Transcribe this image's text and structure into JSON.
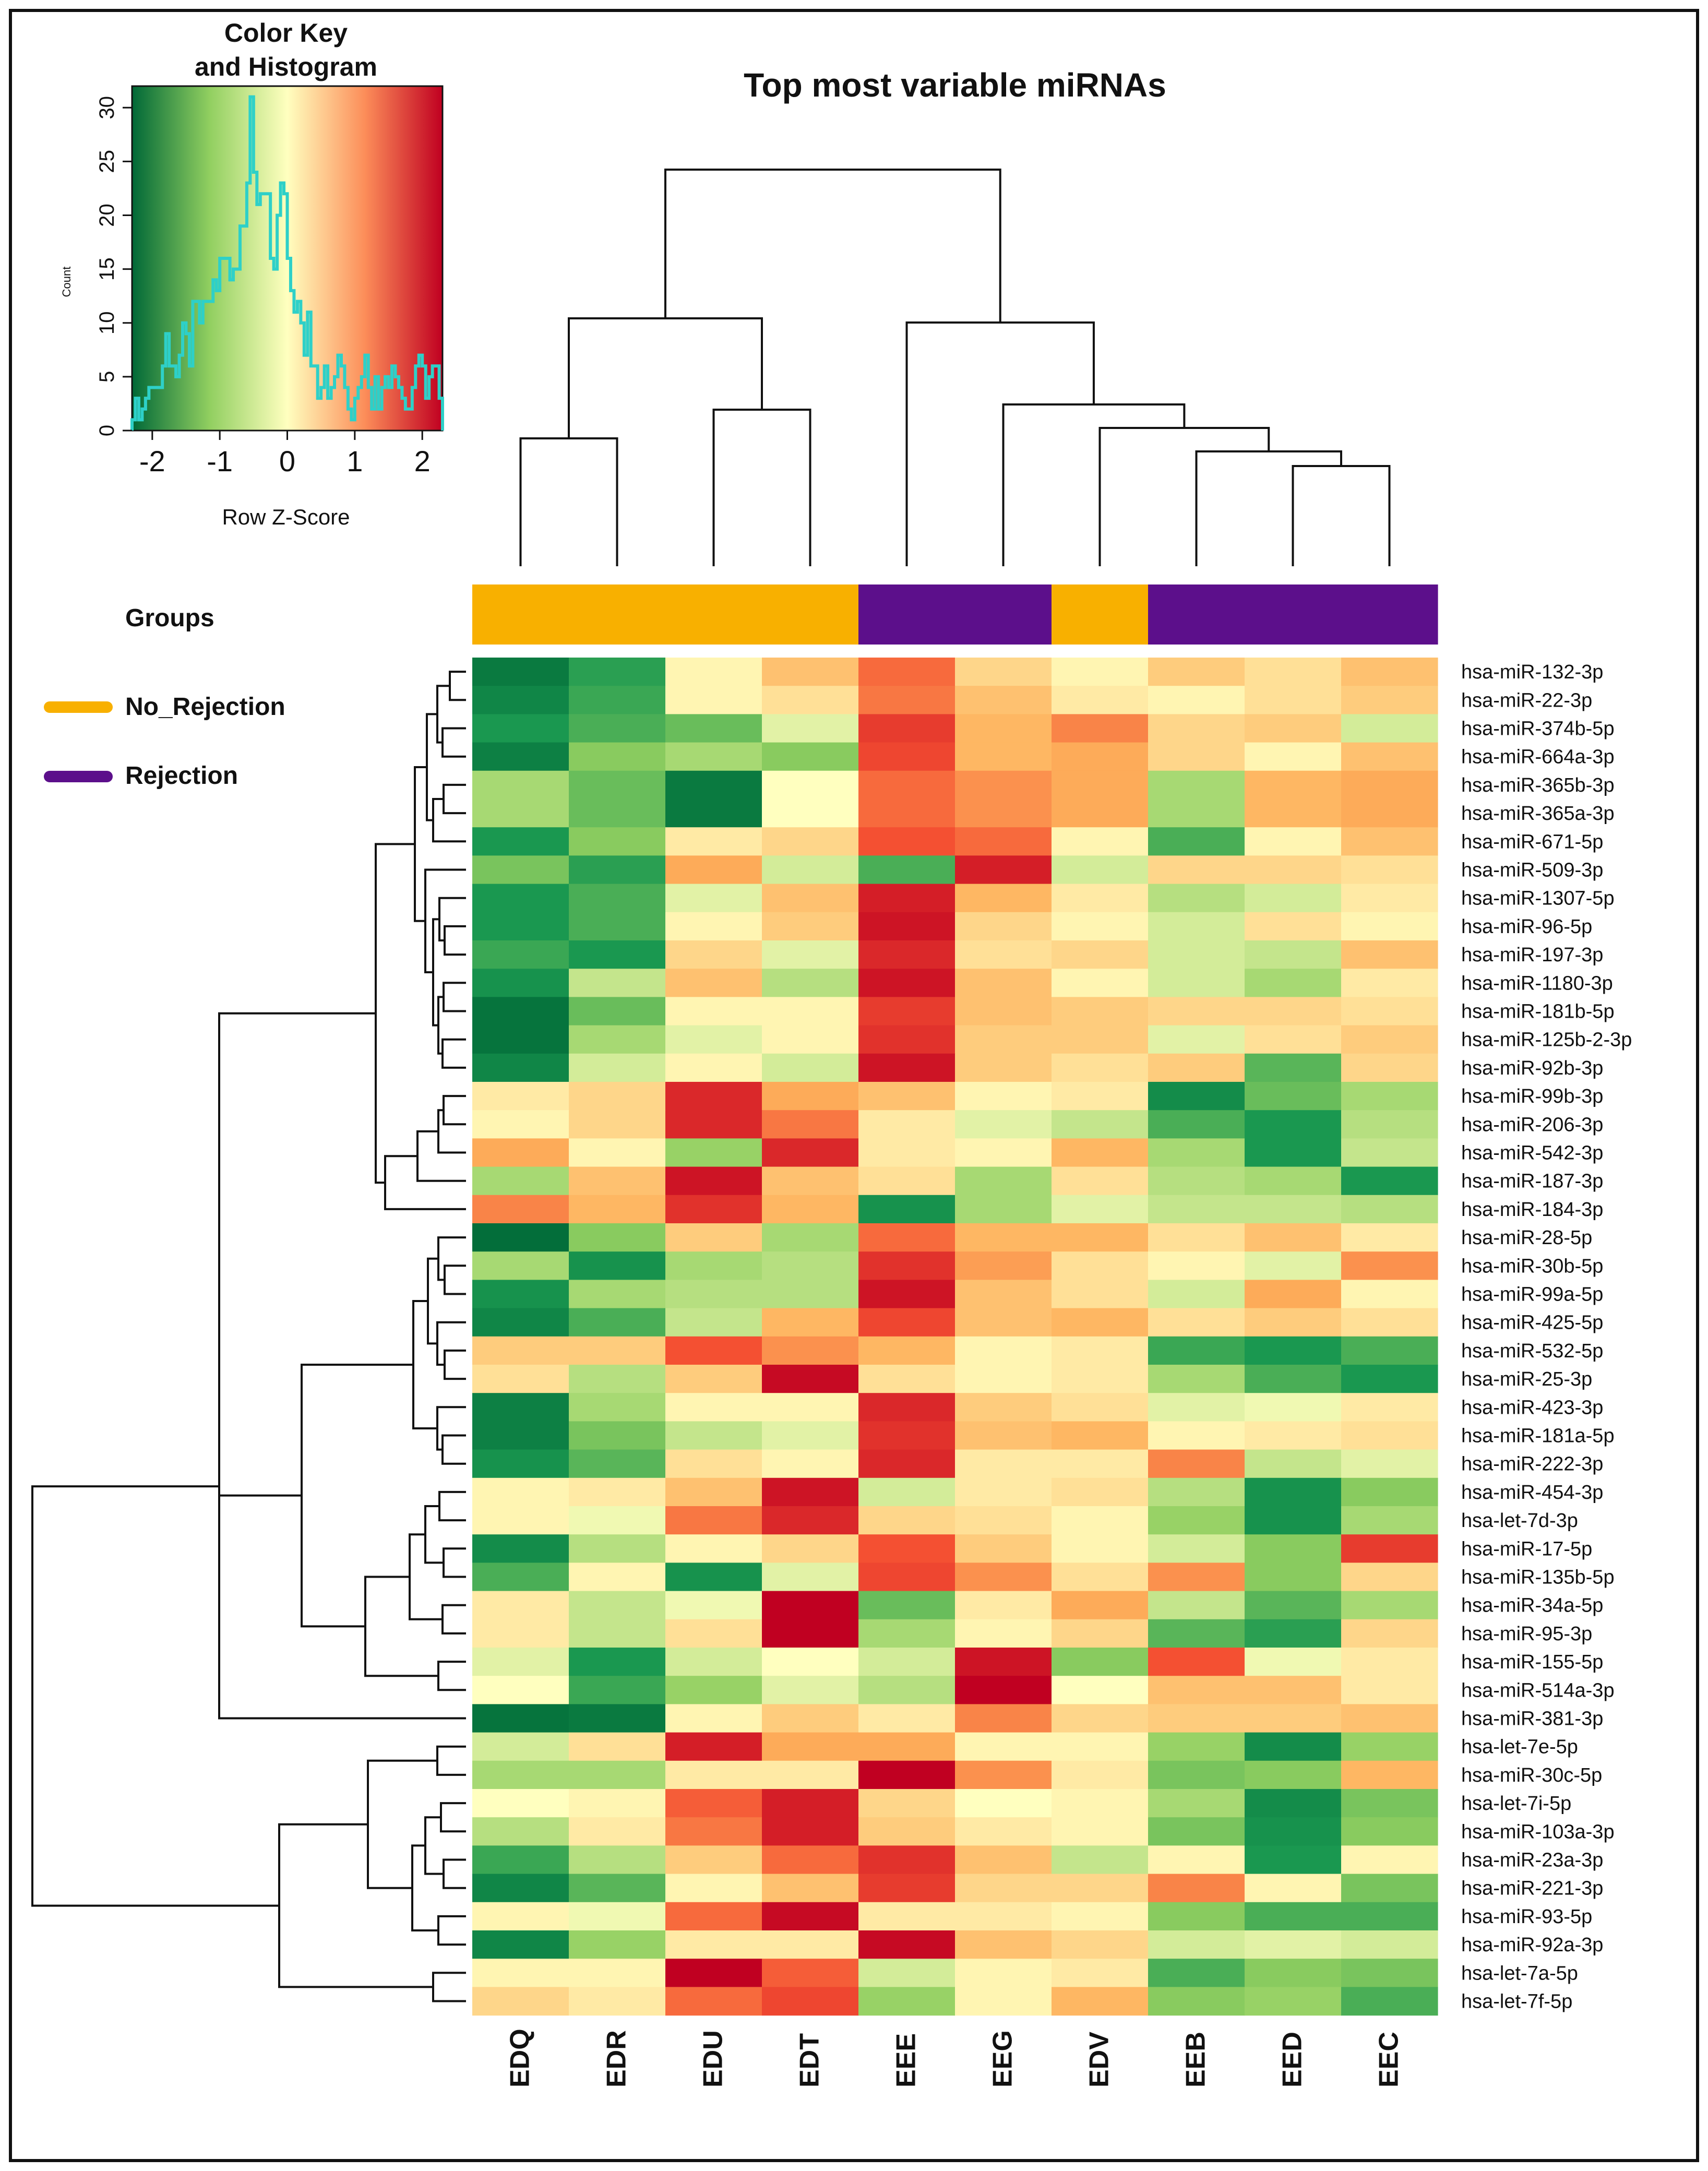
{
  "chart_data": {
    "type": "heatmap",
    "title": "Top most variable miRNAs",
    "columns": [
      "EDQ",
      "EDR",
      "EDU",
      "EDT",
      "EEE",
      "EEG",
      "EDV",
      "EEB",
      "EED",
      "EEC"
    ],
    "column_groups": [
      "No_Rejection",
      "No_Rejection",
      "No_Rejection",
      "No_Rejection",
      "Rejection",
      "Rejection",
      "No_Rejection",
      "Rejection",
      "Rejection",
      "Rejection"
    ],
    "rows": [
      "hsa-miR-132-3p",
      "hsa-miR-22-3p",
      "hsa-miR-374b-5p",
      "hsa-miR-664a-3p",
      "hsa-miR-365b-3p",
      "hsa-miR-365a-3p",
      "hsa-miR-671-5p",
      "hsa-miR-509-3p",
      "hsa-miR-1307-5p",
      "hsa-miR-96-5p",
      "hsa-miR-197-3p",
      "hsa-miR-1180-3p",
      "hsa-miR-181b-5p",
      "hsa-miR-125b-2-3p",
      "hsa-miR-92b-3p",
      "hsa-miR-99b-3p",
      "hsa-miR-206-3p",
      "hsa-miR-542-3p",
      "hsa-miR-187-3p",
      "hsa-miR-184-3p",
      "hsa-miR-28-5p",
      "hsa-miR-30b-5p",
      "hsa-miR-99a-5p",
      "hsa-miR-425-5p",
      "hsa-miR-532-5p",
      "hsa-miR-25-3p",
      "hsa-miR-423-3p",
      "hsa-miR-181a-5p",
      "hsa-miR-222-3p",
      "hsa-miR-454-3p",
      "hsa-let-7d-3p",
      "hsa-miR-17-5p",
      "hsa-miR-135b-5p",
      "hsa-miR-34a-5p",
      "hsa-miR-95-3p",
      "hsa-miR-155-5p",
      "hsa-miR-514a-3p",
      "hsa-miR-381-3p",
      "hsa-let-7e-5p",
      "hsa-miR-30c-5p",
      "hsa-let-7i-5p",
      "hsa-miR-103a-3p",
      "hsa-miR-23a-3p",
      "hsa-miR-221-3p",
      "hsa-miR-93-5p",
      "hsa-miR-92a-3p",
      "hsa-let-7a-5p",
      "hsa-let-7f-5p"
    ],
    "values": [
      [
        -2.0,
        -1.4,
        0.1,
        0.6,
        1.3,
        0.4,
        0.1,
        0.5,
        0.3,
        0.6
      ],
      [
        -1.8,
        -1.3,
        0.1,
        0.3,
        1.2,
        0.6,
        0.2,
        0.1,
        0.3,
        0.5
      ],
      [
        -1.5,
        -1.2,
        -1.0,
        -0.2,
        1.7,
        0.7,
        1.1,
        0.4,
        0.5,
        -0.3
      ],
      [
        -1.9,
        -0.8,
        -0.6,
        -0.8,
        1.6,
        0.7,
        0.8,
        0.4,
        0.1,
        0.6
      ],
      [
        -0.6,
        -1.0,
        -2.0,
        0.0,
        1.3,
        1.0,
        0.8,
        -0.6,
        0.7,
        0.8
      ],
      [
        -0.6,
        -1.0,
        -2.0,
        0.0,
        1.3,
        1.0,
        0.8,
        -0.6,
        0.7,
        0.8
      ],
      [
        -1.5,
        -0.8,
        0.2,
        0.4,
        1.5,
        1.3,
        0.1,
        -1.2,
        0.1,
        0.6
      ],
      [
        -0.9,
        -1.4,
        0.8,
        -0.3,
        -1.2,
        2.0,
        -0.3,
        0.4,
        0.4,
        0.3
      ],
      [
        -1.5,
        -1.2,
        -0.2,
        0.6,
        2.0,
        0.7,
        0.2,
        -0.5,
        -0.3,
        0.2
      ],
      [
        -1.5,
        -1.2,
        0.1,
        0.5,
        2.1,
        0.4,
        0.1,
        -0.3,
        0.3,
        0.1
      ],
      [
        -1.3,
        -1.5,
        0.4,
        -0.2,
        1.9,
        0.3,
        0.4,
        -0.3,
        -0.4,
        0.6
      ],
      [
        -1.6,
        -0.4,
        0.6,
        -0.5,
        2.1,
        0.6,
        0.1,
        -0.3,
        -0.6,
        0.2
      ],
      [
        -2.1,
        -1.0,
        0.1,
        0.1,
        1.7,
        0.6,
        0.5,
        0.4,
        0.4,
        0.3
      ],
      [
        -2.1,
        -0.6,
        -0.2,
        0.1,
        1.8,
        0.5,
        0.5,
        -0.2,
        0.3,
        0.5
      ],
      [
        -1.8,
        -0.3,
        0.1,
        -0.3,
        2.1,
        0.5,
        0.3,
        0.5,
        -1.1,
        0.4
      ],
      [
        0.2,
        0.4,
        1.9,
        0.8,
        0.6,
        0.1,
        0.2,
        -1.7,
        -1.0,
        -0.6
      ],
      [
        0.1,
        0.4,
        1.9,
        1.2,
        0.2,
        -0.2,
        -0.4,
        -1.2,
        -1.5,
        -0.5
      ],
      [
        0.8,
        0.1,
        -0.7,
        1.9,
        0.2,
        0.1,
        0.7,
        -0.6,
        -1.5,
        -0.4
      ],
      [
        -0.6,
        0.6,
        2.1,
        0.6,
        0.3,
        -0.6,
        0.3,
        -0.5,
        -0.6,
        -1.5
      ],
      [
        1.1,
        0.7,
        1.8,
        0.7,
        -1.6,
        -0.6,
        -0.2,
        -0.4,
        -0.4,
        -0.5
      ],
      [
        -2.2,
        -0.8,
        0.5,
        -0.6,
        1.3,
        0.7,
        0.7,
        0.3,
        0.6,
        0.2
      ],
      [
        -0.6,
        -1.6,
        -0.6,
        -0.5,
        1.8,
        0.9,
        0.3,
        0.1,
        -0.2,
        1.0
      ],
      [
        -1.6,
        -0.6,
        -0.5,
        -0.5,
        2.1,
        0.6,
        0.3,
        -0.3,
        0.8,
        0.1
      ],
      [
        -1.8,
        -1.2,
        -0.4,
        0.7,
        1.6,
        0.6,
        0.7,
        0.3,
        0.5,
        0.3
      ],
      [
        0.5,
        0.5,
        1.5,
        1.0,
        0.7,
        0.1,
        0.2,
        -1.3,
        -1.5,
        -1.2
      ],
      [
        0.3,
        -0.5,
        0.5,
        2.2,
        0.3,
        0.1,
        0.2,
        -0.6,
        -1.2,
        -1.5
      ],
      [
        -1.9,
        -0.6,
        0.1,
        0.1,
        1.9,
        0.5,
        0.3,
        -0.2,
        -0.1,
        0.2
      ],
      [
        -1.9,
        -0.9,
        -0.4,
        -0.2,
        1.8,
        0.6,
        0.7,
        0.1,
        0.2,
        0.3
      ],
      [
        -1.6,
        -1.1,
        0.3,
        0.1,
        1.9,
        0.2,
        0.2,
        1.1,
        -0.4,
        -0.2
      ],
      [
        0.1,
        0.2,
        0.6,
        2.1,
        -0.3,
        0.2,
        0.3,
        -0.5,
        -1.6,
        -0.8
      ],
      [
        0.1,
        -0.1,
        1.2,
        1.9,
        0.4,
        0.3,
        0.1,
        -0.7,
        -1.6,
        -0.6
      ],
      [
        -1.7,
        -0.5,
        0.1,
        0.4,
        1.5,
        0.5,
        0.1,
        -0.3,
        -0.8,
        1.7
      ],
      [
        -1.2,
        0.1,
        -1.6,
        -0.2,
        1.6,
        1.0,
        0.3,
        1.0,
        -0.8,
        0.4
      ],
      [
        0.2,
        -0.4,
        -0.1,
        2.3,
        -1.0,
        0.2,
        0.8,
        -0.4,
        -1.1,
        -0.6
      ],
      [
        0.2,
        -0.4,
        0.3,
        2.3,
        -0.6,
        0.1,
        0.4,
        -1.1,
        -1.4,
        0.4
      ],
      [
        -0.2,
        -1.5,
        -0.3,
        0.0,
        -0.3,
        2.1,
        -0.8,
        1.5,
        -0.1,
        0.2
      ],
      [
        0.0,
        -1.3,
        -0.7,
        -0.2,
        -0.5,
        2.3,
        0.0,
        0.6,
        0.6,
        0.2
      ],
      [
        -2.1,
        -2.0,
        0.1,
        0.5,
        0.2,
        1.1,
        0.4,
        0.5,
        0.5,
        0.6
      ],
      [
        -0.3,
        0.3,
        2.0,
        0.8,
        0.8,
        0.1,
        0.1,
        -0.7,
        -1.7,
        -0.7
      ],
      [
        -0.6,
        -0.6,
        0.2,
        0.2,
        2.3,
        1.0,
        0.2,
        -0.9,
        -0.8,
        0.7
      ],
      [
        0.0,
        0.1,
        1.4,
        2.0,
        0.4,
        0.0,
        0.1,
        -0.6,
        -1.7,
        -0.9
      ],
      [
        -0.5,
        0.2,
        1.2,
        2.0,
        0.5,
        0.2,
        0.1,
        -0.9,
        -1.6,
        -0.8
      ],
      [
        -1.3,
        -0.5,
        0.5,
        1.3,
        1.8,
        0.6,
        -0.4,
        0.1,
        -1.5,
        0.1
      ],
      [
        -1.8,
        -1.1,
        0.1,
        0.6,
        1.7,
        0.4,
        0.4,
        1.1,
        0.1,
        -0.9
      ],
      [
        0.1,
        -0.1,
        1.3,
        2.2,
        0.2,
        0.2,
        0.1,
        -0.8,
        -1.2,
        -1.2
      ],
      [
        -1.8,
        -0.7,
        0.2,
        0.2,
        2.2,
        0.6,
        0.4,
        -0.3,
        -0.2,
        -0.3
      ],
      [
        0.1,
        0.1,
        2.3,
        1.4,
        -0.3,
        0.1,
        0.2,
        -1.2,
        -0.8,
        -0.9
      ],
      [
        0.4,
        0.2,
        1.3,
        1.6,
        -0.7,
        0.1,
        0.7,
        -0.8,
        -0.7,
        -1.2
      ]
    ],
    "color_scale": {
      "low": "#006837",
      "mid": "#ffffbf",
      "high": "#c00021",
      "range": [
        -2.3,
        2.3
      ]
    },
    "color_key": {
      "title_line1": "Color Key",
      "title_line2": "and Histogram",
      "xlabel": "Row Z-Score",
      "ylabel": "Count",
      "x_ticks": [
        "-2",
        "-1",
        "0",
        "1",
        "2"
      ],
      "y_ticks": [
        "0",
        "5",
        "10",
        "15",
        "20",
        "25",
        "30"
      ],
      "xlim": [
        -2.3,
        2.3
      ],
      "ylim": [
        0,
        32
      ],
      "histogram_color": "#2ed0c8",
      "histogram": {
        "x": [
          -2.3,
          -2.25,
          -2.2,
          -2.15,
          -2.1,
          -2.05,
          -2.0,
          -1.95,
          -1.9,
          -1.85,
          -1.8,
          -1.75,
          -1.7,
          -1.65,
          -1.6,
          -1.55,
          -1.5,
          -1.45,
          -1.4,
          -1.35,
          -1.3,
          -1.25,
          -1.2,
          -1.15,
          -1.1,
          -1.05,
          -1.0,
          -0.95,
          -0.9,
          -0.85,
          -0.8,
          -0.75,
          -0.7,
          -0.65,
          -0.6,
          -0.55,
          -0.5,
          -0.45,
          -0.4,
          -0.35,
          -0.3,
          -0.25,
          -0.2,
          -0.15,
          -0.1,
          -0.05,
          0.0,
          0.05,
          0.1,
          0.15,
          0.2,
          0.25,
          0.3,
          0.35,
          0.4,
          0.45,
          0.5,
          0.55,
          0.6,
          0.65,
          0.7,
          0.75,
          0.8,
          0.85,
          0.9,
          0.95,
          1.0,
          1.05,
          1.1,
          1.15,
          1.2,
          1.25,
          1.3,
          1.35,
          1.4,
          1.45,
          1.5,
          1.55,
          1.6,
          1.65,
          1.7,
          1.75,
          1.8,
          1.85,
          1.9,
          1.95,
          2.0,
          2.05,
          2.1,
          2.15,
          2.2,
          2.25
        ],
        "counts": [
          1,
          3,
          1,
          2,
          3,
          4,
          4,
          4,
          4,
          6,
          9,
          6,
          6,
          5,
          7,
          10,
          9,
          6,
          12,
          12,
          10,
          12,
          12,
          12,
          14,
          13,
          16,
          16,
          16,
          14,
          15,
          15,
          19,
          19,
          23,
          31,
          24,
          21,
          22,
          22,
          22,
          16,
          15,
          20,
          23,
          22,
          16,
          13,
          11,
          12,
          10,
          7,
          11,
          6,
          6,
          3,
          4,
          6,
          3,
          4,
          5,
          7,
          6,
          4,
          2,
          1,
          3,
          4,
          5,
          7,
          4,
          2,
          5,
          2,
          4,
          5,
          4,
          6,
          5,
          4,
          3,
          2,
          2,
          4,
          6,
          7,
          6,
          3,
          5,
          6,
          6,
          3
        ]
      }
    },
    "legend": {
      "title": "Groups",
      "items": [
        {
          "label": "No_Rejection",
          "color": "#f8b000"
        },
        {
          "label": "Rejection",
          "color": "#5c0f8b"
        }
      ]
    }
  }
}
